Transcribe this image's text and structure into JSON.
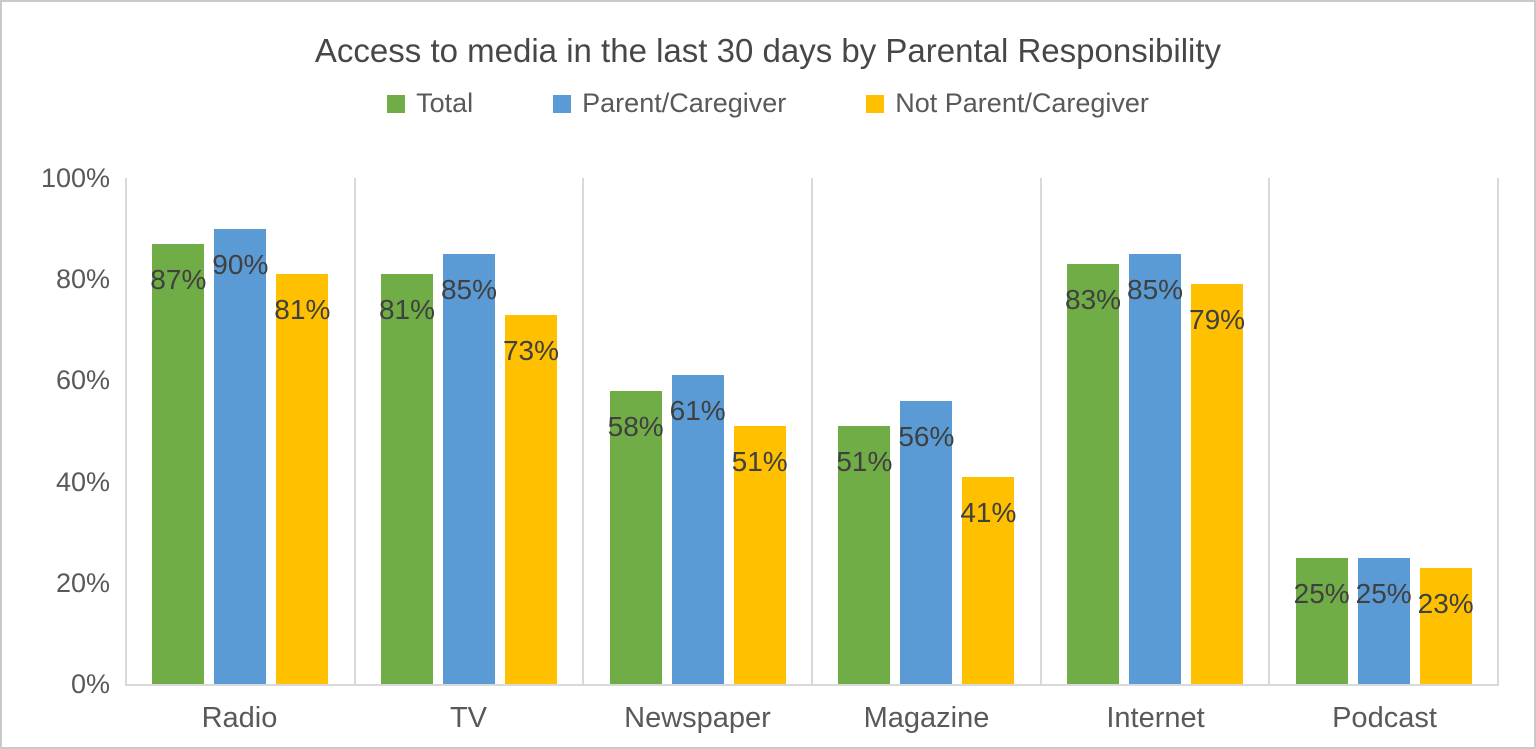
{
  "window": {
    "background": "#FFFFFF",
    "border_color": "#C9C9C9"
  },
  "chart_data": {
    "type": "bar",
    "title": "Access to media in the last 30 days by Parental Responsibility",
    "categories": [
      "Radio",
      "TV",
      "Newspaper",
      "Magazine",
      "Internet",
      "Podcast"
    ],
    "series": [
      {
        "name": "Total",
        "color": "#70AD47",
        "values": [
          87,
          81,
          58,
          51,
          83,
          25
        ]
      },
      {
        "name": "Parent/Caregiver",
        "color": "#5B9BD5",
        "values": [
          90,
          85,
          61,
          56,
          85,
          25
        ]
      },
      {
        "name": "Not Parent/Caregiver",
        "color": "#FFC000",
        "values": [
          81,
          73,
          51,
          41,
          79,
          23
        ]
      }
    ],
    "data_label_suffix": "%",
    "xlabel": "",
    "ylabel": "",
    "ylim": [
      0,
      100
    ],
    "yticks": [
      "0%",
      "20%",
      "40%",
      "60%",
      "80%",
      "100%"
    ],
    "gridlines": {
      "horizontal": false,
      "vertical_category_separators": true,
      "color": "#D9D9D9"
    },
    "legend_position": "top",
    "text_colors": {
      "title": "#474747",
      "data_label": "#404040",
      "axis": "#595959"
    }
  }
}
